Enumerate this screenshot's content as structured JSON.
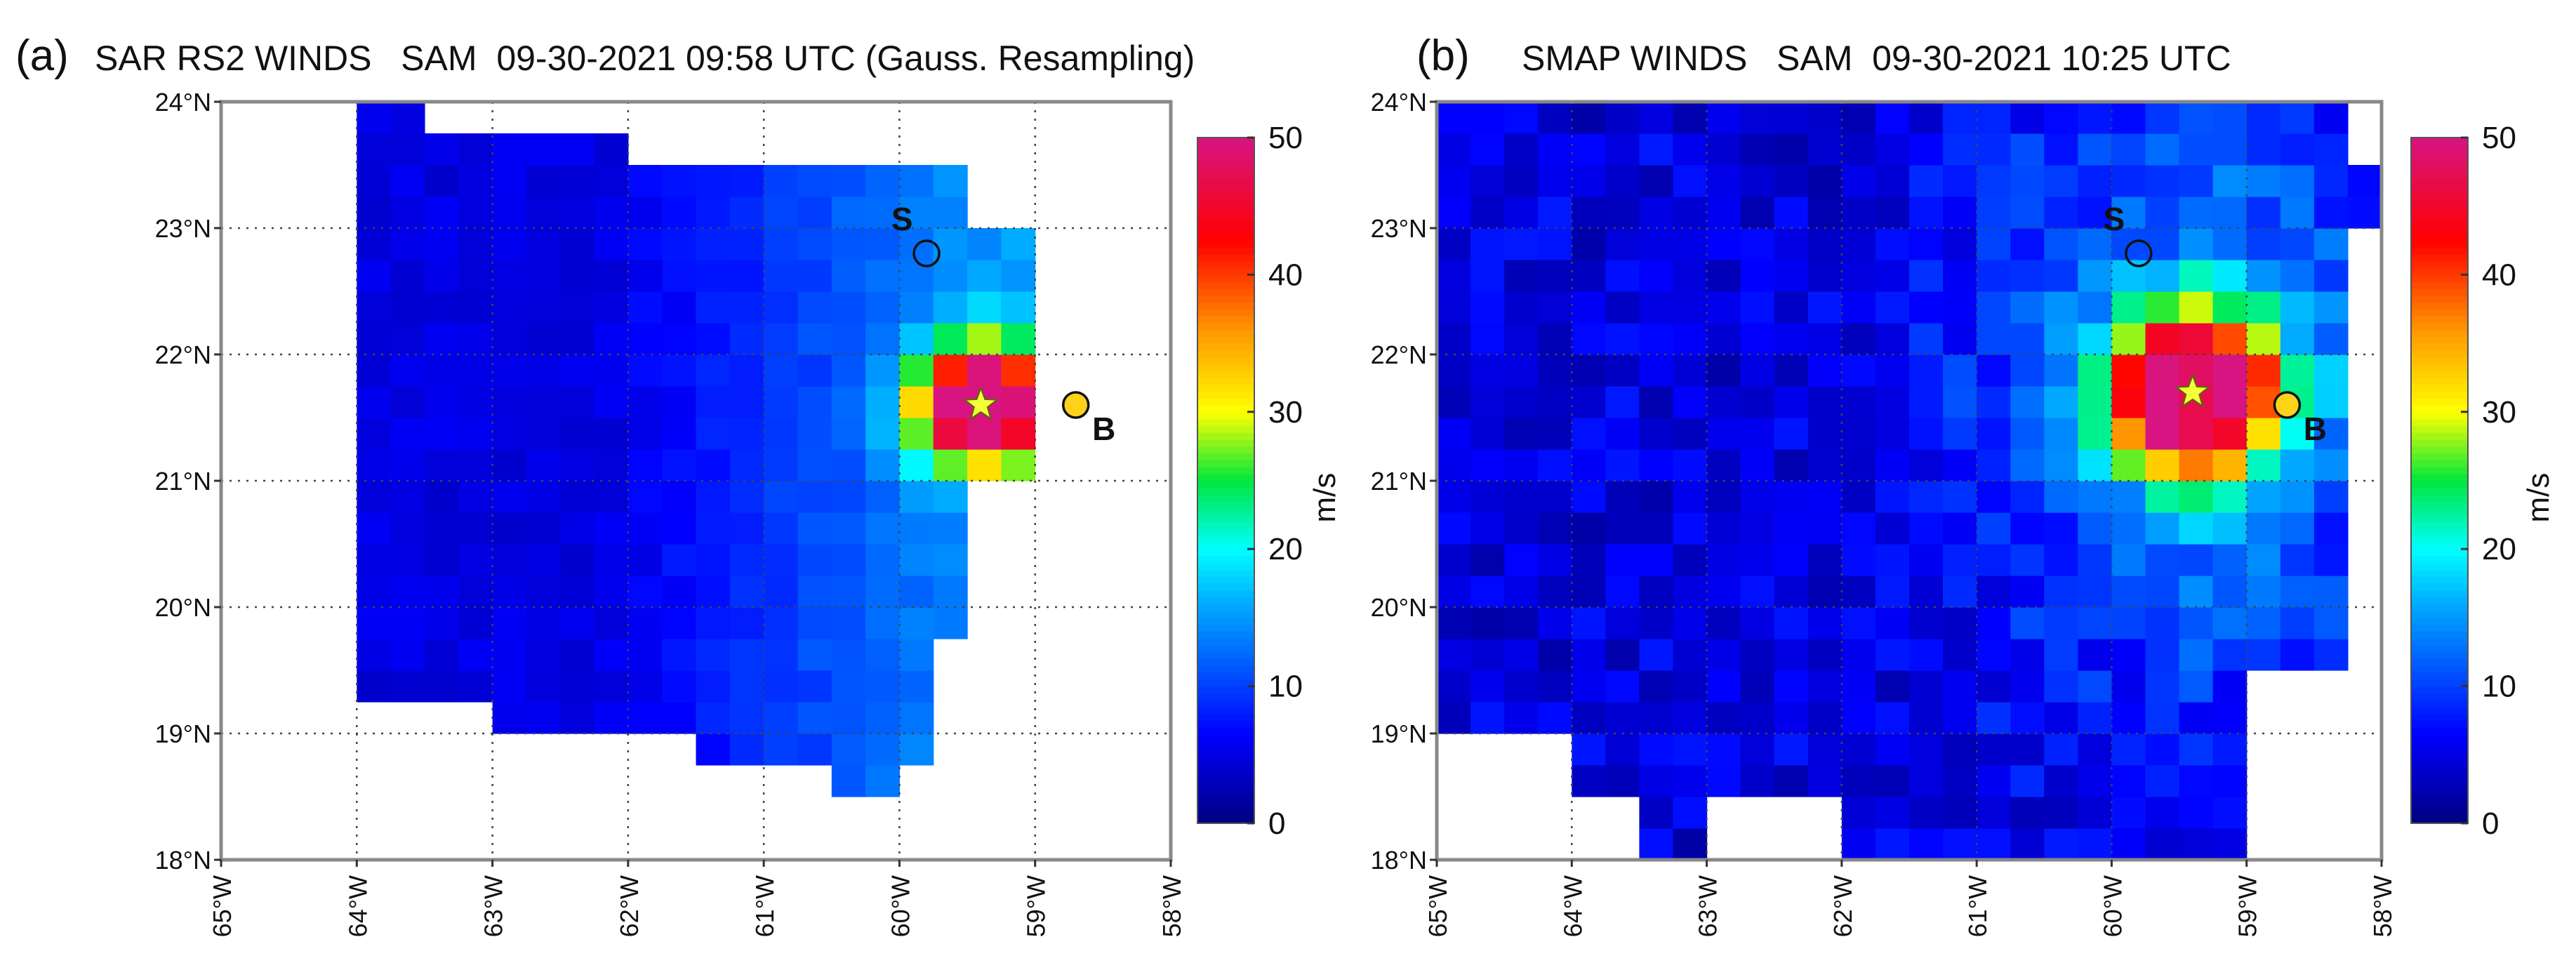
{
  "figure": {
    "panels": 2
  },
  "chart_data": [
    {
      "type": "heatmap",
      "panel_label": "(a)",
      "title": "SAR RS2 WINDS   SAM  09-30-2021 09:58 UTC (Gauss. Resampling)",
      "x_range_deg_west": [
        65,
        58
      ],
      "y_range_deg_north": [
        18,
        24
      ],
      "x_ticks": [
        "65°W",
        "64°W",
        "63°W",
        "62°W",
        "61°W",
        "60°W",
        "59°W",
        "58°W"
      ],
      "y_ticks": [
        "18°N",
        "19°N",
        "20°N",
        "21°N",
        "22°N",
        "23°N",
        "24°N"
      ],
      "grid": true,
      "field": {
        "grid_resolution_deg": 0.25,
        "peak_wind_ms": 50,
        "eye_center": {
          "lat": 21.6,
          "lon_w": 59.4
        },
        "background_wind_ms": 5
      },
      "markers": [
        {
          "label": "S",
          "lat": 22.8,
          "lon_w": 59.8,
          "kind": "open-circle"
        },
        {
          "label": "B",
          "lat": 21.6,
          "lon_w": 58.7,
          "kind": "yellow-circle"
        },
        {
          "label": "",
          "lat": 21.6,
          "lon_w": 59.4,
          "kind": "star"
        }
      ],
      "colorbar": {
        "min": 0,
        "max": 50,
        "ticks": [
          "0",
          "10",
          "20",
          "30",
          "40",
          "50"
        ],
        "label": "m/s"
      }
    },
    {
      "type": "heatmap",
      "panel_label": "(b)",
      "title": "SMAP WINDS   SAM  09-30-2021 10:25 UTC",
      "x_range_deg_west": [
        65,
        58
      ],
      "y_range_deg_north": [
        18,
        24
      ],
      "x_ticks": [
        "65°W",
        "64°W",
        "63°W",
        "62°W",
        "61°W",
        "60°W",
        "59°W",
        "58°W"
      ],
      "y_ticks": [
        "18°N",
        "19°N",
        "20°N",
        "21°N",
        "22°N",
        "23°N",
        "24°N"
      ],
      "grid": true,
      "field": {
        "grid_resolution_deg": 0.25,
        "peak_wind_ms": 50,
        "eye_center": {
          "lat": 21.7,
          "lon_w": 59.4
        },
        "background_wind_ms": 6
      },
      "markers": [
        {
          "label": "S",
          "lat": 22.8,
          "lon_w": 59.8,
          "kind": "open-circle"
        },
        {
          "label": "B",
          "lat": 21.6,
          "lon_w": 58.7,
          "kind": "yellow-circle"
        },
        {
          "label": "",
          "lat": 21.7,
          "lon_w": 59.4,
          "kind": "star"
        }
      ],
      "colorbar": {
        "min": 0,
        "max": 50,
        "ticks": [
          "0",
          "10",
          "20",
          "30",
          "40",
          "50"
        ],
        "label": "m/s"
      }
    }
  ]
}
